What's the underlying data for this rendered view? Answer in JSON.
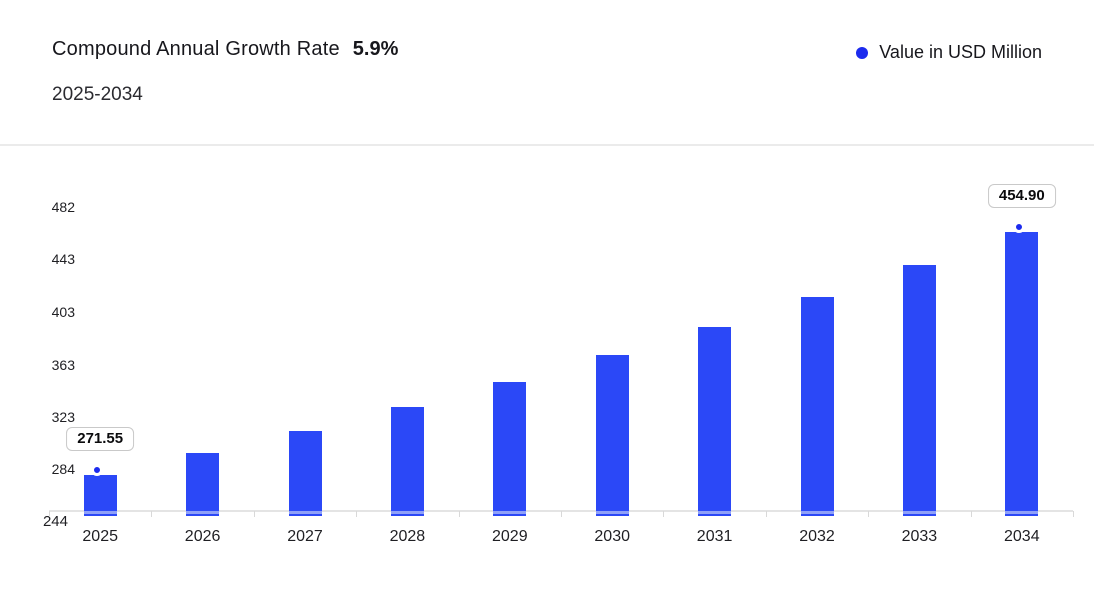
{
  "header": {
    "title": "Compound Annual Growth Rate",
    "cagr_value": "5.9%",
    "subtitle": "2025-2034"
  },
  "legend": {
    "label": "Value in USD Million"
  },
  "colors": {
    "bar": "#2b48f7",
    "bar_stripe": "#8fa0f8",
    "marker": "#1c2bee",
    "axis_line": "#e4e4e4",
    "tick": "#d9d9d9",
    "text": "#1f1f23"
  },
  "chart_data": {
    "type": "bar",
    "title": "Compound Annual Growth Rate 5.9%",
    "subtitle": "2025-2034",
    "series_name": "Value in USD Million",
    "categories": [
      "2025",
      "2026",
      "2027",
      "2028",
      "2029",
      "2030",
      "2031",
      "2032",
      "2033",
      "2034"
    ],
    "values": [
      271.55,
      287.57,
      304.54,
      322.51,
      341.53,
      361.68,
      383.02,
      405.62,
      429.55,
      454.9
    ],
    "data_labels": [
      {
        "index": 0,
        "text": "271.55"
      },
      {
        "index": 9,
        "text": "454.90"
      }
    ],
    "markers_on_indices": [
      0,
      9
    ],
    "y_ticks": [
      244,
      284,
      323,
      363,
      403,
      443,
      482
    ],
    "ylim": [
      244,
      482
    ],
    "xlabel": "",
    "ylabel": "",
    "grid": false,
    "legend_position": "top-right",
    "cagr_percent": 5.9
  }
}
